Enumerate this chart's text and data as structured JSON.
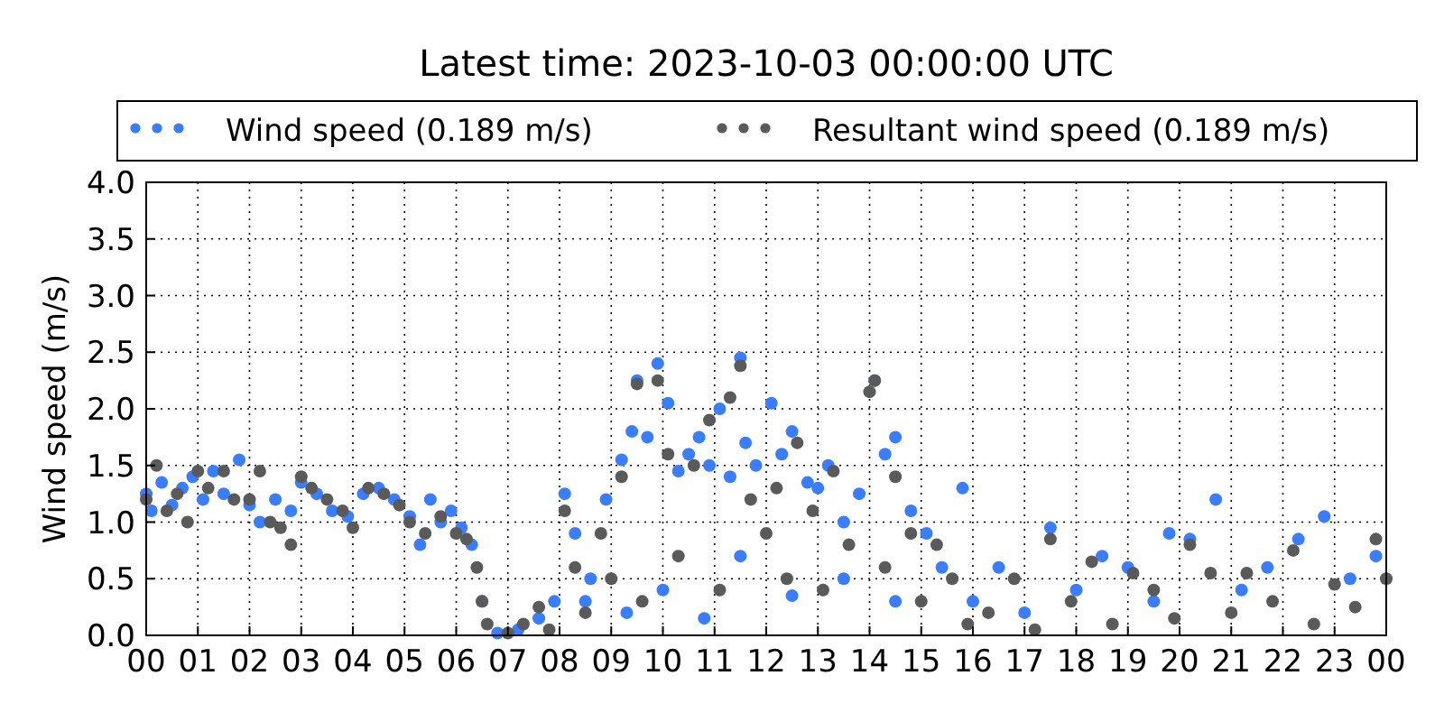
{
  "chart_data": {
    "type": "scatter",
    "title": "Latest time: 2023-10-03 00:00:00 UTC",
    "ylabel": "Wind speed (m/s)",
    "xlim": [
      0,
      24
    ],
    "ylim": [
      0,
      4
    ],
    "xticks": [
      {
        "value": 0,
        "label": "00"
      },
      {
        "value": 1,
        "label": "01"
      },
      {
        "value": 2,
        "label": "02"
      },
      {
        "value": 3,
        "label": "03"
      },
      {
        "value": 4,
        "label": "04"
      },
      {
        "value": 5,
        "label": "05"
      },
      {
        "value": 6,
        "label": "06"
      },
      {
        "value": 7,
        "label": "07"
      },
      {
        "value": 8,
        "label": "08"
      },
      {
        "value": 9,
        "label": "09"
      },
      {
        "value": 10,
        "label": "10"
      },
      {
        "value": 11,
        "label": "11"
      },
      {
        "value": 12,
        "label": "12"
      },
      {
        "value": 13,
        "label": "13"
      },
      {
        "value": 14,
        "label": "14"
      },
      {
        "value": 15,
        "label": "15"
      },
      {
        "value": 16,
        "label": "16"
      },
      {
        "value": 17,
        "label": "17"
      },
      {
        "value": 18,
        "label": "18"
      },
      {
        "value": 19,
        "label": "19"
      },
      {
        "value": 20,
        "label": "20"
      },
      {
        "value": 21,
        "label": "21"
      },
      {
        "value": 22,
        "label": "22"
      },
      {
        "value": 23,
        "label": "23"
      },
      {
        "value": 24,
        "label": "00"
      }
    ],
    "yticks": [
      {
        "value": 0,
        "label": "0.0"
      },
      {
        "value": 0.5,
        "label": "0.5"
      },
      {
        "value": 1,
        "label": "1.0"
      },
      {
        "value": 1.5,
        "label": "1.5"
      },
      {
        "value": 2,
        "label": "2.0"
      },
      {
        "value": 2.5,
        "label": "2.5"
      },
      {
        "value": 3,
        "label": "3.0"
      },
      {
        "value": 3.5,
        "label": "3.5"
      },
      {
        "value": 4,
        "label": "4.0"
      }
    ],
    "grid": true,
    "legend": "top",
    "marker": "circle",
    "series": [
      {
        "name": "Wind speed (0.189 m/s)",
        "color": "#3a7dff",
        "x": [
          0,
          0.1,
          0.3,
          0.5,
          0.7,
          0.9,
          1.1,
          1.3,
          1.5,
          1.8,
          2.0,
          2.2,
          2.5,
          2.8,
          3.0,
          3.3,
          3.6,
          3.9,
          4.2,
          4.5,
          4.8,
          5.1,
          5.3,
          5.5,
          5.7,
          5.9,
          6.1,
          6.3,
          6.5,
          6.8,
          7.2,
          7.6,
          7.9,
          8.1,
          8.3,
          8.5,
          8.6,
          8.9,
          9.2,
          9.3,
          9.4,
          9.5,
          9.7,
          9.9,
          10.0,
          10.1,
          10.3,
          10.5,
          10.7,
          10.8,
          10.9,
          11.1,
          11.3,
          11.5,
          11.5,
          11.6,
          11.8,
          12.1,
          12.3,
          12.5,
          12.5,
          12.8,
          13.0,
          13.2,
          13.5,
          13.5,
          13.8,
          14.1,
          14.3,
          14.5,
          14.5,
          14.8,
          15.1,
          15.4,
          15.8,
          16.0,
          16.5,
          17.0,
          17.5,
          18.0,
          18.5,
          19.0,
          19.5,
          19.8,
          20.2,
          20.7,
          21.2,
          21.7,
          22.3,
          22.8,
          23.3,
          23.8
        ],
        "values": [
          1.25,
          1.1,
          1.35,
          1.15,
          1.3,
          1.4,
          1.2,
          1.45,
          1.25,
          1.55,
          1.15,
          1.0,
          1.2,
          1.1,
          1.35,
          1.25,
          1.1,
          1.05,
          1.25,
          1.3,
          1.2,
          1.05,
          0.8,
          1.2,
          1.0,
          1.1,
          0.95,
          0.8,
          0.3,
          0.02,
          0.05,
          0.15,
          0.3,
          1.25,
          0.9,
          0.3,
          0.5,
          1.2,
          1.55,
          0.2,
          1.8,
          2.25,
          1.75,
          2.4,
          0.4,
          2.05,
          1.45,
          1.6,
          1.75,
          0.15,
          1.5,
          2.0,
          1.4,
          2.45,
          0.7,
          1.7,
          1.5,
          2.05,
          1.6,
          1.8,
          0.35,
          1.35,
          1.3,
          1.5,
          1.0,
          0.5,
          1.25,
          2.25,
          1.6,
          1.75,
          0.3,
          1.1,
          0.9,
          0.6,
          1.3,
          0.3,
          0.6,
          0.2,
          0.95,
          0.4,
          0.7,
          0.6,
          0.3,
          0.9,
          0.85,
          1.2,
          0.4,
          0.6,
          0.85,
          1.05,
          0.5,
          0.7
        ]
      },
      {
        "name": "Resultant wind speed (0.189 m/s)",
        "color": "#5a5a5a",
        "x": [
          0,
          0.2,
          0.4,
          0.6,
          0.8,
          1.0,
          1.2,
          1.5,
          1.7,
          2.0,
          2.2,
          2.4,
          2.6,
          2.8,
          3.0,
          3.2,
          3.5,
          3.8,
          4.0,
          4.3,
          4.6,
          4.9,
          5.1,
          5.4,
          5.7,
          6.0,
          6.2,
          6.4,
          6.5,
          6.6,
          7.0,
          7.3,
          7.6,
          7.8,
          8.1,
          8.3,
          8.5,
          8.8,
          9.0,
          9.2,
          9.5,
          9.6,
          9.9,
          10.1,
          10.3,
          10.6,
          10.9,
          11.1,
          11.3,
          11.5,
          11.7,
          12.0,
          12.2,
          12.4,
          12.6,
          12.9,
          13.1,
          13.3,
          13.6,
          14.0,
          14.1,
          14.3,
          14.5,
          14.8,
          15.0,
          15.3,
          15.6,
          15.9,
          16.3,
          16.8,
          17.2,
          17.5,
          17.9,
          18.3,
          18.7,
          19.1,
          19.5,
          19.9,
          20.2,
          20.6,
          21.0,
          21.3,
          21.8,
          22.2,
          22.6,
          23.0,
          23.4,
          23.8,
          24.0
        ],
        "values": [
          1.2,
          1.5,
          1.1,
          1.25,
          1.0,
          1.45,
          1.3,
          1.45,
          1.2,
          1.2,
          1.45,
          1.0,
          0.95,
          0.8,
          1.4,
          1.3,
          1.2,
          1.1,
          0.95,
          1.3,
          1.25,
          1.15,
          1.0,
          0.9,
          1.05,
          0.9,
          0.85,
          0.6,
          0.3,
          0.1,
          0.02,
          0.1,
          0.25,
          0.05,
          1.1,
          0.6,
          0.2,
          0.9,
          0.5,
          1.4,
          2.22,
          0.3,
          2.25,
          1.6,
          0.7,
          1.5,
          1.9,
          0.4,
          2.1,
          2.38,
          1.2,
          0.9,
          1.3,
          0.5,
          1.7,
          1.1,
          0.4,
          1.45,
          0.8,
          2.15,
          2.25,
          0.6,
          1.4,
          0.9,
          0.3,
          0.8,
          0.5,
          0.1,
          0.2,
          0.5,
          0.05,
          0.85,
          0.3,
          0.65,
          0.1,
          0.55,
          0.4,
          0.15,
          0.8,
          0.55,
          0.2,
          0.55,
          0.3,
          0.75,
          0.1,
          0.45,
          0.25,
          0.85,
          0.5
        ]
      }
    ]
  }
}
